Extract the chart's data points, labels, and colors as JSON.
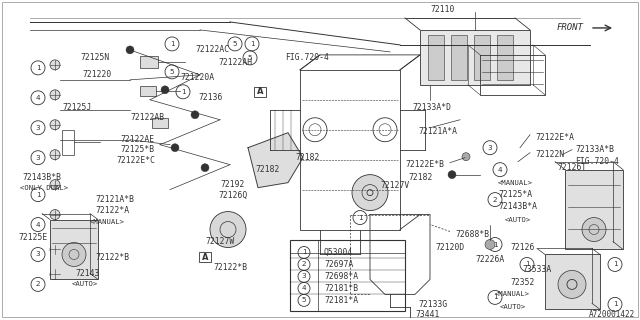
{
  "bg_color": "#f5f5f0",
  "line_color": "#333333",
  "diagram_id": "A720001422",
  "legend": [
    {
      "num": 1,
      "code": "Q53004"
    },
    {
      "num": 2,
      "code": "72697A"
    },
    {
      "num": 3,
      "code": "72698*A"
    },
    {
      "num": 4,
      "code": "72181*B"
    },
    {
      "num": 5,
      "code": "72181*A"
    }
  ]
}
